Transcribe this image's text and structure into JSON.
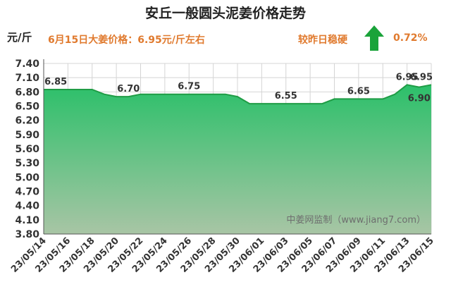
{
  "title": "安丘一般圆头泥姜价格走势",
  "unit_label": "元/斤",
  "headline": "6月15日大姜价格：6.95元/斤左右",
  "compare_label": "较昨日稳硬",
  "change_pct": "0.72%",
  "colors": {
    "arrow": "#1aa33a",
    "fill_top": "#2cc06a",
    "fill_bottom": "#a8c5a5",
    "line": "#1f9c45",
    "accent": "#e07a2e"
  },
  "icons": {
    "trend": "arrow-up-icon"
  },
  "chart_data": {
    "type": "area",
    "title": "安丘一般圆头泥姜价格走势",
    "ylabel": "元/斤",
    "ylim": [
      3.8,
      7.4
    ],
    "yticks": [
      "3.80",
      "4.10",
      "4.40",
      "4.70",
      "5.00",
      "5.30",
      "5.60",
      "5.90",
      "6.20",
      "6.50",
      "6.80",
      "7.10",
      "7.40"
    ],
    "xticks": [
      "23/05/14",
      "23/05/16",
      "23/05/18",
      "23/05/20",
      "23/05/22",
      "23/05/24",
      "23/05/26",
      "23/05/28",
      "23/05/30",
      "23/06/01",
      "23/06/03",
      "23/06/05",
      "23/06/07",
      "23/06/09",
      "23/06/11",
      "23/06/13",
      "23/06/15"
    ],
    "x": [
      "05/14",
      "05/15",
      "05/16",
      "05/17",
      "05/18",
      "05/19",
      "05/20",
      "05/21",
      "05/22",
      "05/23",
      "05/24",
      "05/25",
      "05/26",
      "05/27",
      "05/28",
      "05/29",
      "05/30",
      "05/31",
      "06/01",
      "06/02",
      "06/03",
      "06/04",
      "06/05",
      "06/06",
      "06/07",
      "06/08",
      "06/09",
      "06/10",
      "06/11",
      "06/12",
      "06/13",
      "06/14",
      "06/15"
    ],
    "values": [
      6.85,
      6.85,
      6.85,
      6.85,
      6.85,
      6.75,
      6.7,
      6.7,
      6.75,
      6.75,
      6.75,
      6.75,
      6.75,
      6.75,
      6.75,
      6.75,
      6.7,
      6.55,
      6.55,
      6.55,
      6.55,
      6.55,
      6.55,
      6.55,
      6.65,
      6.65,
      6.65,
      6.65,
      6.65,
      6.75,
      6.95,
      6.9,
      6.95
    ],
    "labels": [
      {
        "i": 1,
        "text": "6.85",
        "pos": "above"
      },
      {
        "i": 7,
        "text": "6.70",
        "pos": "above"
      },
      {
        "i": 12,
        "text": "6.75",
        "pos": "above"
      },
      {
        "i": 20,
        "text": "6.55",
        "pos": "above"
      },
      {
        "i": 26,
        "text": "6.65",
        "pos": "above"
      },
      {
        "i": 30,
        "text": "6.95",
        "pos": "above"
      },
      {
        "i": 31,
        "text": "6.90",
        "pos": "below"
      },
      {
        "i": 32,
        "text": "6.95",
        "pos": "above"
      }
    ],
    "grid": true,
    "watermark": "中姜网监制（www.jiang7.com）"
  }
}
